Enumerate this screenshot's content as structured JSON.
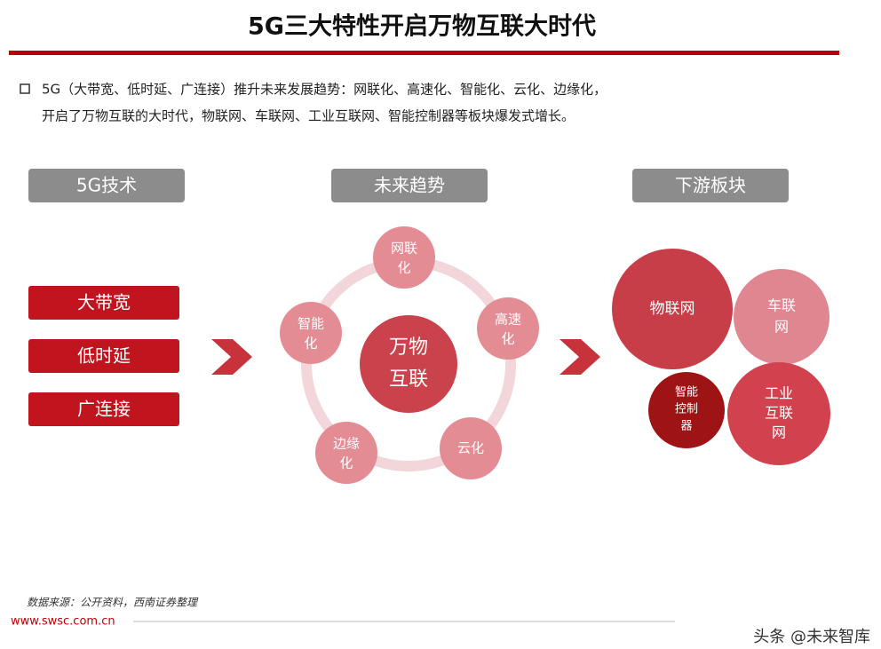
{
  "header": {
    "title": "5G三大特性开启万物互联大时代"
  },
  "intro": {
    "lines": [
      "5G（大带宽、低时延、广连接）推升未来发展趋势：网联化、高速化、智能化、云化、边缘化，",
      "开启了万物互联的大时代，物联网、车联网、工业互联网、智能控制器等板块爆发式增长。"
    ]
  },
  "columns": [
    "5G技术",
    "未来趋势",
    "下游板块"
  ],
  "features": [
    "大带宽",
    "低时延",
    "广连接"
  ],
  "center": {
    "lines": [
      "万物",
      "互联"
    ]
  },
  "trends": [
    {
      "lines": [
        "网联",
        "化"
      ]
    },
    {
      "lines": [
        "高速",
        "化"
      ]
    },
    {
      "lines": [
        "云化"
      ]
    },
    {
      "lines": [
        "边缘",
        "化"
      ]
    },
    {
      "lines": [
        "智能",
        "化"
      ]
    }
  ],
  "sectors": [
    {
      "lines": [
        "物联网"
      ]
    },
    {
      "lines": [
        "车联",
        "网"
      ]
    },
    {
      "lines": [
        "智能",
        "控制",
        "器"
      ]
    },
    {
      "lines": [
        "工业",
        "互联",
        "网"
      ]
    }
  ],
  "footer": {
    "source": "数据来源：公开资料，西南证券整理",
    "website": "www.swsc.com.cn",
    "watermark": "头条 @未来智库"
  }
}
